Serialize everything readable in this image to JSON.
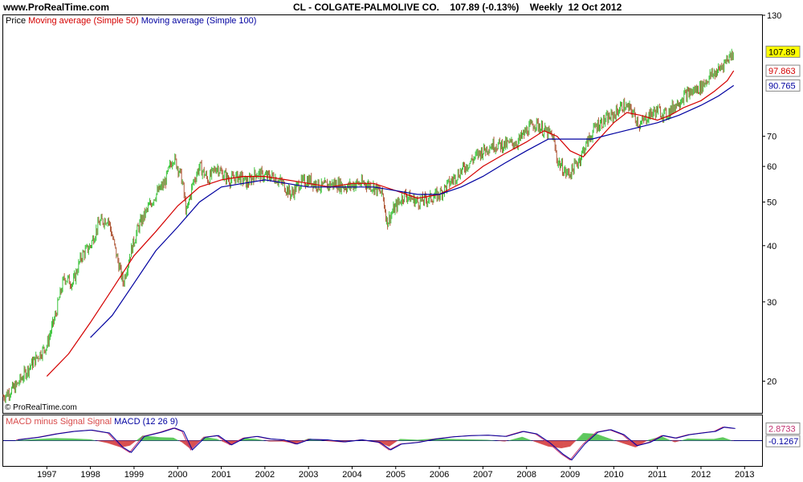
{
  "header": {
    "site": "www.ProRealTime.com",
    "title": "CL - COLGATE-PALMOLIVE CO.    107.89 (-0.13%)    Weekly  12 Oct 2012"
  },
  "legend": {
    "price": "Price",
    "ma50": "Moving average (Simple 50)",
    "ma100": "Moving average (Simple 100)"
  },
  "credit": "© ProRealTime.com",
  "macd_legend": {
    "hist": "MACD minus Signal Signal",
    "macd": "MACD (12 26 9)"
  },
  "value_tags": {
    "price": "107.89",
    "ma50": "97.863",
    "ma100": "90.765",
    "macd": "2.8733",
    "hist": "-0.1267"
  },
  "colors": {
    "up": "#3cc43c",
    "down": "#b05a3a",
    "ma50": "#d40000",
    "ma100": "#0000a0",
    "hist_pos": "#5ec85e",
    "hist_neg": "#d85050",
    "price_tag_bg": "#ffff00"
  },
  "chart_data": [
    {
      "type": "line",
      "title": "CL - COLGATE-PALMOLIVE CO.",
      "scale": "log",
      "ylim": [
        17,
        130
      ],
      "y_ticks": [
        20,
        30,
        40,
        50,
        60,
        70,
        130
      ],
      "x_ticks": [
        "1997",
        "1998",
        "1999",
        "2000",
        "2001",
        "2002",
        "2003",
        "2004",
        "2005",
        "2006",
        "2007",
        "2008",
        "2009",
        "2010",
        "2011",
        "2012",
        "2013"
      ],
      "x_range": [
        1996.0,
        2013.4
      ],
      "series": [
        {
          "name": "Price",
          "x": [
            1996.0,
            1996.3,
            1996.6,
            1997.0,
            1997.2,
            1997.4,
            1997.6,
            1997.8,
            1998.0,
            1998.2,
            1998.4,
            1998.6,
            1998.75,
            1998.9,
            1999.1,
            1999.3,
            1999.5,
            1999.7,
            1999.9,
            2000.0,
            2000.1,
            2000.2,
            2000.35,
            2000.5,
            2000.7,
            2000.9,
            2001.0,
            2001.2,
            2001.4,
            2001.6,
            2001.8,
            2002.0,
            2002.2,
            2002.4,
            2002.6,
            2002.8,
            2003.0,
            2003.3,
            2003.6,
            2003.9,
            2004.1,
            2004.3,
            2004.5,
            2004.7,
            2004.8,
            2004.95,
            2005.2,
            2005.5,
            2005.8,
            2006.0,
            2006.3,
            2006.6,
            2006.9,
            2007.2,
            2007.5,
            2007.8,
            2008.0,
            2008.2,
            2008.4,
            2008.6,
            2008.7,
            2008.8,
            2008.9,
            2009.0,
            2009.2,
            2009.4,
            2009.6,
            2009.8,
            2010.0,
            2010.2,
            2010.4,
            2010.6,
            2010.8,
            2011.0,
            2011.2,
            2011.4,
            2011.6,
            2011.8,
            2012.0,
            2012.2,
            2012.4,
            2012.6,
            2012.75
          ],
          "values": [
            18.5,
            19.5,
            21.5,
            24,
            28,
            34,
            33,
            38,
            40,
            45,
            46,
            38,
            33,
            38,
            44,
            48,
            52,
            55,
            63,
            60,
            56,
            47,
            55,
            60,
            56,
            60,
            58,
            56,
            57,
            55,
            58,
            57,
            57,
            55,
            52,
            55,
            56,
            54,
            55,
            54,
            55,
            55,
            54,
            52,
            45,
            48,
            52,
            50,
            51,
            52,
            56,
            60,
            64,
            67,
            67,
            68,
            72,
            75,
            72,
            70,
            62,
            60,
            58,
            58,
            62,
            68,
            74,
            76,
            78,
            82,
            80,
            74,
            78,
            80,
            78,
            82,
            86,
            88,
            90,
            95,
            98,
            104,
            107.89
          ]
        },
        {
          "name": "Moving average (Simple 50)",
          "x": [
            1997.0,
            1997.5,
            1998.0,
            1998.5,
            1999.0,
            1999.5,
            2000.0,
            2000.5,
            2001.0,
            2001.5,
            2002.0,
            2002.5,
            2003.0,
            2003.5,
            2004.0,
            2004.5,
            2005.0,
            2005.5,
            2006.0,
            2006.5,
            2007.0,
            2007.5,
            2008.0,
            2008.4,
            2008.7,
            2009.0,
            2009.3,
            2009.6,
            2010.0,
            2010.3,
            2010.6,
            2011.0,
            2011.3,
            2011.6,
            2012.0,
            2012.3,
            2012.6,
            2012.75
          ],
          "values": [
            20.5,
            23,
            27,
            32,
            38,
            43,
            49,
            54,
            56,
            57,
            57,
            56,
            55,
            54,
            55,
            55,
            53,
            51,
            52,
            55,
            60,
            64,
            68,
            72,
            70,
            65,
            63,
            68,
            75,
            79,
            78,
            76,
            78,
            81,
            84,
            88,
            93,
            97.863
          ]
        },
        {
          "name": "Moving average (Simple 100)",
          "x": [
            1998.0,
            1998.5,
            1999.0,
            1999.5,
            2000.0,
            2000.5,
            2001.0,
            2001.5,
            2002.0,
            2002.5,
            2003.0,
            2003.5,
            2004.0,
            2004.5,
            2005.0,
            2005.5,
            2006.0,
            2006.5,
            2007.0,
            2007.5,
            2008.0,
            2008.5,
            2009.0,
            2009.5,
            2010.0,
            2010.5,
            2011.0,
            2011.5,
            2012.0,
            2012.4,
            2012.75
          ],
          "values": [
            25,
            28,
            33,
            39,
            44,
            50,
            54,
            55,
            56,
            55,
            54,
            54,
            54,
            54,
            53,
            52,
            52,
            54,
            57,
            61,
            65,
            69,
            69,
            69,
            71,
            73,
            75,
            78,
            82,
            86,
            90.765
          ]
        }
      ]
    },
    {
      "type": "line",
      "title": "MACD (12 26 9)",
      "ylim": [
        -6,
        6
      ],
      "series": [
        {
          "name": "MACD (12 26 9)",
          "x": [
            1996.3,
            1996.8,
            1997.2,
            1997.6,
            1998.0,
            1998.4,
            1998.7,
            1998.9,
            1999.2,
            1999.6,
            1999.9,
            2000.1,
            2000.3,
            2000.6,
            2000.9,
            2001.2,
            2001.5,
            2001.8,
            2002.1,
            2002.4,
            2002.7,
            2003.0,
            2003.4,
            2003.8,
            2004.2,
            2004.6,
            2004.85,
            2005.1,
            2005.5,
            2005.9,
            2006.3,
            2006.7,
            2007.1,
            2007.5,
            2007.9,
            2008.2,
            2008.5,
            2008.8,
            2009.0,
            2009.3,
            2009.6,
            2009.9,
            2010.2,
            2010.5,
            2010.8,
            2011.1,
            2011.4,
            2011.7,
            2012.0,
            2012.3,
            2012.5,
            2012.75
          ],
          "values": [
            0.2,
            0.8,
            1.6,
            2.2,
            2.5,
            1.8,
            -1.5,
            -2.8,
            1.0,
            2.0,
            3.0,
            2.2,
            -2.2,
            0.8,
            1.2,
            -1.0,
            0.6,
            1.0,
            0.4,
            0.2,
            -0.8,
            0.3,
            0.2,
            -0.3,
            0.2,
            -0.4,
            -2.2,
            -0.8,
            -0.4,
            0.4,
            0.9,
            1.2,
            1.3,
            1.0,
            2.2,
            1.6,
            -0.5,
            -3.2,
            -4.6,
            -0.8,
            2.0,
            2.6,
            1.4,
            -1.2,
            -0.4,
            1.2,
            0.6,
            1.4,
            1.8,
            2.2,
            3.2,
            2.8733
          ]
        },
        {
          "name": "MACD minus Signal Signal",
          "x": [
            1996.3,
            1996.8,
            1997.2,
            1997.6,
            1998.0,
            1998.4,
            1998.7,
            1998.9,
            1999.2,
            1999.6,
            1999.9,
            2000.1,
            2000.3,
            2000.6,
            2000.9,
            2001.2,
            2001.5,
            2001.8,
            2002.1,
            2002.4,
            2002.7,
            2003.0,
            2003.4,
            2003.8,
            2004.2,
            2004.6,
            2004.85,
            2005.1,
            2005.5,
            2005.9,
            2006.3,
            2006.7,
            2007.1,
            2007.5,
            2007.9,
            2008.2,
            2008.5,
            2008.8,
            2009.0,
            2009.3,
            2009.6,
            2009.9,
            2010.2,
            2010.5,
            2010.8,
            2011.1,
            2011.4,
            2011.7,
            2012.0,
            2012.3,
            2012.5,
            2012.75
          ],
          "values": [
            0.1,
            0.4,
            0.6,
            0.5,
            0.3,
            -0.6,
            -1.6,
            -1.2,
            1.2,
            0.8,
            0.7,
            -0.4,
            -2.0,
            0.9,
            0.4,
            -1.0,
            0.6,
            0.4,
            -0.2,
            -0.2,
            -0.7,
            0.5,
            -0.1,
            -0.4,
            0.3,
            -0.4,
            -1.4,
            0.4,
            0.2,
            0.5,
            0.4,
            0.3,
            0.2,
            -0.2,
            0.9,
            -0.3,
            -1.4,
            -1.8,
            -1.4,
            1.8,
            1.6,
            0.5,
            -0.6,
            -1.6,
            0.2,
            1.0,
            -0.4,
            0.5,
            0.4,
            0.4,
            0.8,
            -0.1267
          ]
        }
      ]
    }
  ]
}
